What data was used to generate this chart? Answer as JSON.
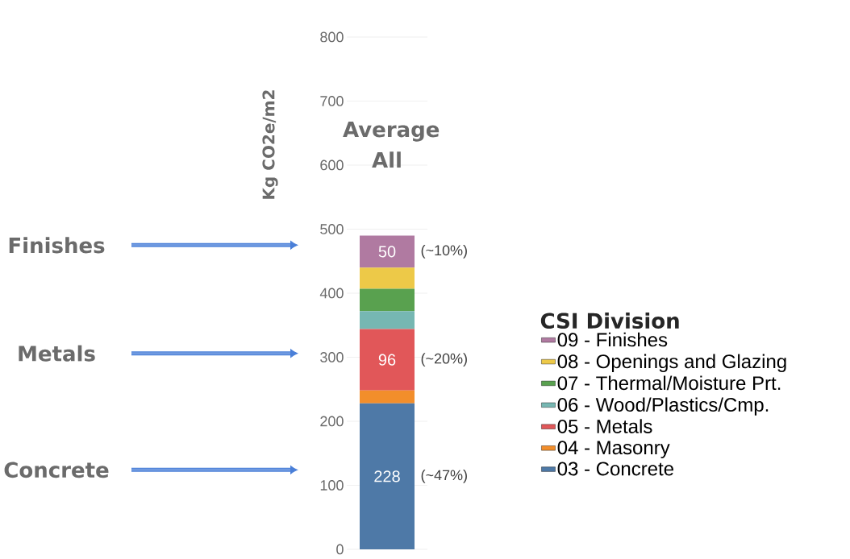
{
  "chart_data": {
    "type": "bar",
    "stacked": true,
    "ylabel": "Kg CO2e/m2",
    "legend_title": "CSI Division",
    "legend": "bottom right",
    "grid": "y",
    "categories": [
      "Average All"
    ],
    "ylim": [
      0,
      800
    ],
    "yticks": [
      0,
      100,
      200,
      300,
      400,
      500,
      600,
      700,
      800
    ],
    "series": [
      {
        "name": "03 - Concrete",
        "color": "#4e79a7",
        "values": [
          228
        ],
        "value_labels": [
          "228"
        ]
      },
      {
        "name": "04 - Masonry",
        "color": "#f28e2b",
        "values": [
          20
        ],
        "value_labels": [
          null
        ]
      },
      {
        "name": "05 - Metals",
        "color": "#e15759",
        "values": [
          96
        ],
        "value_labels": [
          "96"
        ]
      },
      {
        "name": "06 - Wood/Plastics/Cmp.",
        "color": "#76b7b2",
        "values": [
          28
        ],
        "value_labels": [
          null
        ]
      },
      {
        "name": "07 - Thermal/Moisture Prt.",
        "color": "#59a14f",
        "values": [
          35
        ],
        "value_labels": [
          null
        ]
      },
      {
        "name": "08 - Openings and Glazing",
        "color": "#edc948",
        "values": [
          33
        ],
        "value_labels": [
          null
        ]
      },
      {
        "name": "09 - Finishes",
        "color": "#b07aa1",
        "values": [
          50
        ],
        "value_labels": [
          "50"
        ]
      }
    ],
    "annotations": [
      "(~10%)",
      "(~20%)",
      "(~47%)",
      "Finishes",
      "Metals",
      "Concrete"
    ]
  }
}
